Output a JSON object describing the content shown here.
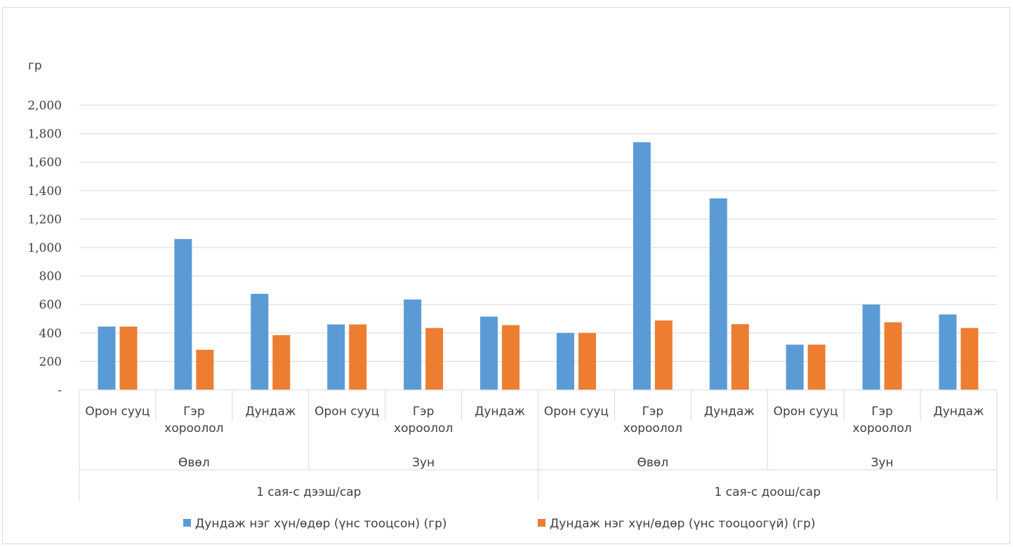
{
  "chart_data": {
    "type": "bar",
    "ylabel": "гр",
    "ylim": [
      0,
      2000
    ],
    "yticks": [
      {
        "value": 0,
        "label": "-"
      },
      {
        "value": 200,
        "label": "200"
      },
      {
        "value": 400,
        "label": "400"
      },
      {
        "value": 600,
        "label": "600"
      },
      {
        "value": 800,
        "label": "800"
      },
      {
        "value": 1000,
        "label": "1,000"
      },
      {
        "value": 1200,
        "label": "1,200"
      },
      {
        "value": 1400,
        "label": "1,400"
      },
      {
        "value": 1600,
        "label": "1,600"
      },
      {
        "value": 1800,
        "label": "1,800"
      },
      {
        "value": 2000,
        "label": "2,000"
      }
    ],
    "grid": true,
    "legend_position": "bottom",
    "categories": [
      "Орон сууц",
      "Гэр хороолол",
      "Дундаж",
      "Орон сууц",
      "Гэр хороолол",
      "Дундаж",
      "Орон сууц",
      "Гэр хороолол",
      "Дундаж",
      "Орон сууц",
      "Гэр хороолол",
      "Дундаж"
    ],
    "category_lines": [
      [
        "Орон сууц"
      ],
      [
        "Гэр",
        "хороолол"
      ],
      [
        "Дундаж"
      ],
      [
        "Орон сууц"
      ],
      [
        "Гэр",
        "хороолол"
      ],
      [
        "Дундаж"
      ],
      [
        "Орон сууц"
      ],
      [
        "Гэр",
        "хороолол"
      ],
      [
        "Дундаж"
      ],
      [
        "Орон сууц"
      ],
      [
        "Гэр",
        "хороолол"
      ],
      [
        "Дундаж"
      ]
    ],
    "season_groups": [
      "Өвөл",
      "Зун",
      "Өвөл",
      "Зун"
    ],
    "income_groups": [
      "1 сая-с дээш/сар",
      "1 сая-с доош/сар"
    ],
    "series": [
      {
        "name": "Дундаж нэг хүн/өдөр (үнс тооцсон) (гр)",
        "color": "#5b9bd5",
        "values": [
          445,
          1060,
          675,
          460,
          635,
          515,
          400,
          1740,
          1345,
          318,
          600,
          530
        ]
      },
      {
        "name": "Дундаж нэг хүн/өдөр (үнс тооцоогүй) (гр)",
        "color": "#ed7d31",
        "values": [
          445,
          282,
          385,
          460,
          435,
          455,
          400,
          488,
          462,
          318,
          475,
          435
        ]
      }
    ]
  }
}
